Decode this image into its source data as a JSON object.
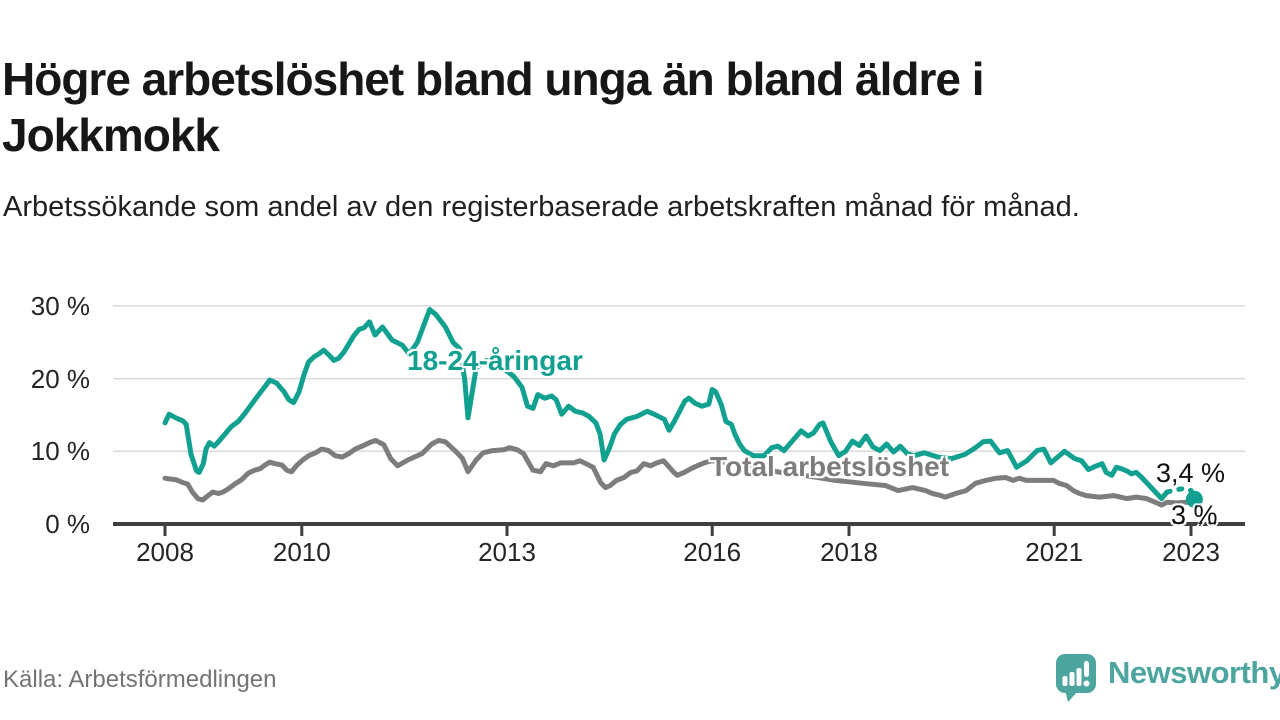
{
  "title": "Högre arbetslöshet bland unga än bland äldre i Jokkmokk",
  "subtitle": "Arbetssökande som andel av den registerbaserade arbetskraften månad för månad.",
  "source": "Källa: Arbetsförmedlingen",
  "branding": {
    "logo_text": "Newsworthy",
    "logo_icon": "newsworthy-speech-bubble-chart-icon",
    "logo_color": "#4da5a0"
  },
  "chart_data": {
    "type": "line",
    "title": "",
    "xlabel": "",
    "ylabel": "",
    "grid": true,
    "legend_position": "inline-labels",
    "ylim": [
      0,
      31
    ],
    "xlim": [
      2007.2,
      2023.8
    ],
    "yticks": [
      0,
      10,
      20,
      30
    ],
    "ytick_labels": [
      "0 %",
      "10 %",
      "20 %",
      "30 %"
    ],
    "xticks": [
      2008,
      2010,
      2013,
      2016,
      2018,
      2021,
      2023
    ],
    "xtick_labels": [
      "2008",
      "2010",
      "2013",
      "2016",
      "2018",
      "2021",
      "2023"
    ],
    "grid_color": "#d9d9d9",
    "axis_color": "#3f3f3f",
    "x_unit": "decimal-year",
    "y_unit": "percent",
    "series": [
      {
        "name": "18-24-åringar",
        "color": "#12a190",
        "end_label": "3,4 %",
        "end_dot": true,
        "dashed_from": 2022.65,
        "points": [
          [
            2008.0,
            13.9
          ],
          [
            2008.06,
            15.1
          ],
          [
            2008.16,
            14.6
          ],
          [
            2008.26,
            14.2
          ],
          [
            2008.31,
            13.7
          ],
          [
            2008.38,
            9.6
          ],
          [
            2008.46,
            7.3
          ],
          [
            2008.5,
            7.1
          ],
          [
            2008.56,
            8.3
          ],
          [
            2008.6,
            10.3
          ],
          [
            2008.65,
            11.2
          ],
          [
            2008.72,
            10.7
          ],
          [
            2008.79,
            11.4
          ],
          [
            2008.87,
            12.3
          ],
          [
            2008.97,
            13.4
          ],
          [
            2009.07,
            14.1
          ],
          [
            2009.16,
            15.1
          ],
          [
            2009.26,
            16.4
          ],
          [
            2009.37,
            17.8
          ],
          [
            2009.46,
            18.9
          ],
          [
            2009.53,
            19.8
          ],
          [
            2009.63,
            19.4
          ],
          [
            2009.74,
            18.2
          ],
          [
            2009.81,
            17.1
          ],
          [
            2009.88,
            16.7
          ],
          [
            2009.96,
            18.2
          ],
          [
            2010.03,
            20.5
          ],
          [
            2010.1,
            22.3
          ],
          [
            2010.18,
            23.0
          ],
          [
            2010.25,
            23.4
          ],
          [
            2010.32,
            23.9
          ],
          [
            2010.4,
            23.2
          ],
          [
            2010.47,
            22.5
          ],
          [
            2010.54,
            22.8
          ],
          [
            2010.62,
            23.7
          ],
          [
            2010.69,
            24.8
          ],
          [
            2010.76,
            25.9
          ],
          [
            2010.84,
            26.8
          ],
          [
            2010.91,
            27.0
          ],
          [
            2010.99,
            27.8
          ],
          [
            2011.07,
            26.0
          ],
          [
            2011.18,
            27.1
          ],
          [
            2011.32,
            25.3
          ],
          [
            2011.47,
            24.6
          ],
          [
            2011.57,
            23.4
          ],
          [
            2011.69,
            25.0
          ],
          [
            2011.87,
            29.5
          ],
          [
            2011.96,
            28.8
          ],
          [
            2012.1,
            27.1
          ],
          [
            2012.21,
            25.0
          ],
          [
            2012.31,
            24.1
          ],
          [
            2012.38,
            20.0
          ],
          [
            2012.43,
            14.6
          ],
          [
            2012.55,
            21.5
          ],
          [
            2012.7,
            22.5
          ],
          [
            2012.85,
            22.0
          ],
          [
            2013.0,
            21.0
          ],
          [
            2013.1,
            20.3
          ],
          [
            2013.22,
            18.8
          ],
          [
            2013.3,
            16.2
          ],
          [
            2013.38,
            15.9
          ],
          [
            2013.45,
            17.8
          ],
          [
            2013.55,
            17.3
          ],
          [
            2013.65,
            17.6
          ],
          [
            2013.72,
            17.1
          ],
          [
            2013.8,
            15.1
          ],
          [
            2013.9,
            16.2
          ],
          [
            2014.0,
            15.5
          ],
          [
            2014.1,
            15.3
          ],
          [
            2014.2,
            14.8
          ],
          [
            2014.3,
            13.9
          ],
          [
            2014.36,
            12.4
          ],
          [
            2014.42,
            8.8
          ],
          [
            2014.5,
            10.5
          ],
          [
            2014.57,
            12.4
          ],
          [
            2014.66,
            13.7
          ],
          [
            2014.75,
            14.4
          ],
          [
            2014.9,
            14.8
          ],
          [
            2015.05,
            15.5
          ],
          [
            2015.15,
            15.1
          ],
          [
            2015.3,
            14.4
          ],
          [
            2015.37,
            12.9
          ],
          [
            2015.45,
            14.2
          ],
          [
            2015.6,
            16.9
          ],
          [
            2015.66,
            17.3
          ],
          [
            2015.75,
            16.6
          ],
          [
            2015.85,
            16.2
          ],
          [
            2015.95,
            16.5
          ],
          [
            2016.0,
            18.5
          ],
          [
            2016.05,
            18.2
          ],
          [
            2016.13,
            16.5
          ],
          [
            2016.2,
            14.1
          ],
          [
            2016.28,
            13.7
          ],
          [
            2016.33,
            12.4
          ],
          [
            2016.4,
            11.0
          ],
          [
            2016.47,
            10.1
          ],
          [
            2016.6,
            9.4
          ],
          [
            2016.76,
            9.4
          ],
          [
            2016.87,
            10.5
          ],
          [
            2016.96,
            10.7
          ],
          [
            2017.05,
            10.1
          ],
          [
            2017.15,
            11.2
          ],
          [
            2017.3,
            12.8
          ],
          [
            2017.4,
            12.1
          ],
          [
            2017.48,
            12.5
          ],
          [
            2017.57,
            13.7
          ],
          [
            2017.62,
            13.9
          ],
          [
            2017.73,
            11.4
          ],
          [
            2017.85,
            9.4
          ],
          [
            2017.95,
            10.0
          ],
          [
            2018.05,
            11.4
          ],
          [
            2018.15,
            10.8
          ],
          [
            2018.25,
            12.1
          ],
          [
            2018.35,
            10.6
          ],
          [
            2018.45,
            10.1
          ],
          [
            2018.55,
            11.0
          ],
          [
            2018.65,
            9.9
          ],
          [
            2018.75,
            10.7
          ],
          [
            2018.85,
            9.7
          ],
          [
            2018.95,
            9.4
          ],
          [
            2019.1,
            9.8
          ],
          [
            2019.3,
            9.2
          ],
          [
            2019.5,
            9.0
          ],
          [
            2019.7,
            9.6
          ],
          [
            2019.85,
            10.5
          ],
          [
            2019.96,
            11.3
          ],
          [
            2020.07,
            11.4
          ],
          [
            2020.2,
            9.8
          ],
          [
            2020.32,
            10.1
          ],
          [
            2020.45,
            7.8
          ],
          [
            2020.6,
            8.7
          ],
          [
            2020.75,
            10.1
          ],
          [
            2020.85,
            10.3
          ],
          [
            2020.95,
            8.4
          ],
          [
            2021.05,
            9.2
          ],
          [
            2021.15,
            10.0
          ],
          [
            2021.3,
            9.0
          ],
          [
            2021.4,
            8.7
          ],
          [
            2021.5,
            7.5
          ],
          [
            2021.62,
            8.0
          ],
          [
            2021.7,
            8.3
          ],
          [
            2021.76,
            7.1
          ],
          [
            2021.84,
            6.7
          ],
          [
            2021.91,
            7.8
          ],
          [
            2021.98,
            7.6
          ],
          [
            2022.06,
            7.3
          ],
          [
            2022.13,
            6.9
          ],
          [
            2022.2,
            7.1
          ],
          [
            2022.28,
            6.4
          ],
          [
            2022.35,
            5.7
          ],
          [
            2022.43,
            4.9
          ],
          [
            2022.5,
            4.2
          ],
          [
            2022.57,
            3.5
          ],
          [
            2022.65,
            4.4
          ],
          [
            2022.78,
            4.7
          ],
          [
            2022.9,
            4.9
          ],
          [
            2023.0,
            4.6
          ],
          [
            2023.05,
            3.4
          ]
        ]
      },
      {
        "name": "Total arbetslöshet",
        "color": "#7d7d7d",
        "end_label": "3 %",
        "end_dot": false,
        "points": [
          [
            2008.0,
            6.3
          ],
          [
            2008.06,
            6.2
          ],
          [
            2008.16,
            6.1
          ],
          [
            2008.26,
            5.7
          ],
          [
            2008.33,
            5.5
          ],
          [
            2008.4,
            4.4
          ],
          [
            2008.48,
            3.5
          ],
          [
            2008.55,
            3.3
          ],
          [
            2008.63,
            3.9
          ],
          [
            2008.7,
            4.4
          ],
          [
            2008.78,
            4.2
          ],
          [
            2008.85,
            4.4
          ],
          [
            2008.92,
            4.8
          ],
          [
            2009.02,
            5.5
          ],
          [
            2009.12,
            6.1
          ],
          [
            2009.22,
            7.0
          ],
          [
            2009.31,
            7.4
          ],
          [
            2009.39,
            7.6
          ],
          [
            2009.46,
            8.1
          ],
          [
            2009.53,
            8.5
          ],
          [
            2009.61,
            8.3
          ],
          [
            2009.71,
            8.1
          ],
          [
            2009.78,
            7.4
          ],
          [
            2009.85,
            7.2
          ],
          [
            2009.93,
            8.1
          ],
          [
            2010.0,
            8.7
          ],
          [
            2010.1,
            9.4
          ],
          [
            2010.2,
            9.8
          ],
          [
            2010.29,
            10.3
          ],
          [
            2010.39,
            10.1
          ],
          [
            2010.49,
            9.4
          ],
          [
            2010.59,
            9.2
          ],
          [
            2010.69,
            9.7
          ],
          [
            2010.78,
            10.3
          ],
          [
            2010.88,
            10.7
          ],
          [
            2010.99,
            11.2
          ],
          [
            2011.08,
            11.5
          ],
          [
            2011.2,
            10.9
          ],
          [
            2011.3,
            9.0
          ],
          [
            2011.4,
            8.0
          ],
          [
            2011.55,
            8.8
          ],
          [
            2011.76,
            9.7
          ],
          [
            2011.9,
            11.0
          ],
          [
            2012.0,
            11.5
          ],
          [
            2012.1,
            11.3
          ],
          [
            2012.25,
            10.0
          ],
          [
            2012.35,
            9.0
          ],
          [
            2012.43,
            7.2
          ],
          [
            2012.55,
            8.8
          ],
          [
            2012.65,
            9.8
          ],
          [
            2012.79,
            10.1
          ],
          [
            2012.95,
            10.2
          ],
          [
            2013.04,
            10.5
          ],
          [
            2013.15,
            10.2
          ],
          [
            2013.24,
            9.7
          ],
          [
            2013.38,
            7.4
          ],
          [
            2013.49,
            7.2
          ],
          [
            2013.57,
            8.3
          ],
          [
            2013.68,
            8.0
          ],
          [
            2013.78,
            8.4
          ],
          [
            2013.97,
            8.4
          ],
          [
            2014.07,
            8.7
          ],
          [
            2014.26,
            7.8
          ],
          [
            2014.37,
            5.7
          ],
          [
            2014.44,
            5.0
          ],
          [
            2014.51,
            5.3
          ],
          [
            2014.6,
            6.0
          ],
          [
            2014.71,
            6.4
          ],
          [
            2014.81,
            7.1
          ],
          [
            2014.9,
            7.3
          ],
          [
            2015.0,
            8.3
          ],
          [
            2015.1,
            8.0
          ],
          [
            2015.19,
            8.4
          ],
          [
            2015.29,
            8.7
          ],
          [
            2015.44,
            7.1
          ],
          [
            2015.49,
            6.7
          ],
          [
            2015.59,
            7.1
          ],
          [
            2015.69,
            7.6
          ],
          [
            2015.78,
            8.0
          ],
          [
            2015.88,
            8.4
          ],
          [
            2015.99,
            8.7
          ],
          [
            2016.2,
            8.5
          ],
          [
            2016.43,
            8.3
          ],
          [
            2016.6,
            7.9
          ],
          [
            2016.8,
            7.5
          ],
          [
            2017.0,
            7.1
          ],
          [
            2017.2,
            6.8
          ],
          [
            2017.4,
            6.6
          ],
          [
            2017.6,
            6.3
          ],
          [
            2017.8,
            6.0
          ],
          [
            2018.0,
            5.8
          ],
          [
            2018.2,
            5.6
          ],
          [
            2018.4,
            5.4
          ],
          [
            2018.53,
            5.3
          ],
          [
            2018.72,
            4.6
          ],
          [
            2018.93,
            5.0
          ],
          [
            2019.12,
            4.6
          ],
          [
            2019.22,
            4.2
          ],
          [
            2019.31,
            4.0
          ],
          [
            2019.41,
            3.7
          ],
          [
            2019.56,
            4.2
          ],
          [
            2019.71,
            4.6
          ],
          [
            2019.85,
            5.6
          ],
          [
            2020.0,
            6.0
          ],
          [
            2020.15,
            6.3
          ],
          [
            2020.29,
            6.4
          ],
          [
            2020.4,
            6.0
          ],
          [
            2020.49,
            6.3
          ],
          [
            2020.59,
            6.0
          ],
          [
            2020.78,
            6.0
          ],
          [
            2020.99,
            6.0
          ],
          [
            2021.07,
            5.6
          ],
          [
            2021.18,
            5.3
          ],
          [
            2021.28,
            4.6
          ],
          [
            2021.37,
            4.2
          ],
          [
            2021.47,
            3.9
          ],
          [
            2021.66,
            3.7
          ],
          [
            2021.87,
            3.9
          ],
          [
            2022.06,
            3.5
          ],
          [
            2022.2,
            3.7
          ],
          [
            2022.35,
            3.5
          ],
          [
            2022.5,
            2.9
          ],
          [
            2022.57,
            2.6
          ],
          [
            2022.65,
            3.0
          ],
          [
            2022.79,
            2.9
          ],
          [
            2022.94,
            3.0
          ],
          [
            2023.05,
            3.0
          ]
        ]
      }
    ]
  }
}
